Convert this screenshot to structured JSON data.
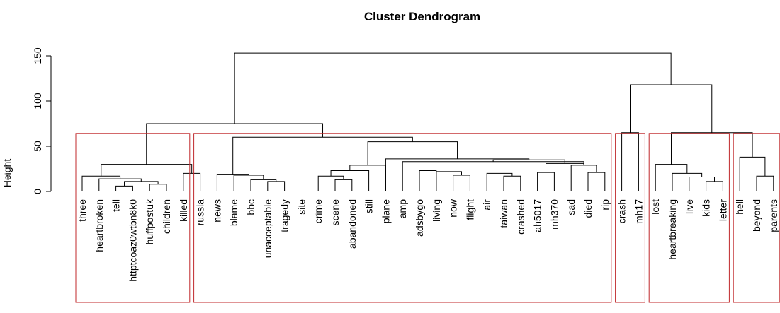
{
  "chart_data": {
    "type": "dendrogram",
    "title": "Cluster Dendrogram",
    "ylabel": "Height",
    "ylim": [
      0,
      160
    ],
    "yticks": [
      0,
      50,
      100,
      150
    ],
    "leaves": [
      "three",
      "heartbroken",
      "tell",
      "httptcoaz0wtbn8k0",
      "huffpostuk",
      "children",
      "killed",
      "russia",
      "news",
      "blame",
      "bbc",
      "unacceptable",
      "tragedy",
      "site",
      "crime",
      "scene",
      "abandoned",
      "still",
      "plane",
      "amp",
      "adsbygo",
      "living",
      "now",
      "flight",
      "air",
      "taiwan",
      "crashed",
      "ah5017",
      "mh370",
      "sad",
      "died",
      "rip",
      "crash",
      "mh17",
      "lost",
      "heartbreaking",
      "live",
      "kids",
      "letter",
      "hell",
      "beyond",
      "parents"
    ],
    "merges": [
      {
        "a": "L:2",
        "b": "L:3",
        "h": 6
      },
      {
        "a": "L:4",
        "b": "L:5",
        "h": 8
      },
      {
        "a": "N:0",
        "b": "N:1",
        "h": 11
      },
      {
        "a": "L:1",
        "b": "N:2",
        "h": 14
      },
      {
        "a": "L:0",
        "b": "N:3",
        "h": 17
      },
      {
        "a": "L:6",
        "b": "L:7",
        "h": 20
      },
      {
        "a": "N:4",
        "b": "N:5",
        "h": 30
      },
      {
        "a": "L:11",
        "b": "L:12",
        "h": 11
      },
      {
        "a": "L:10",
        "b": "N:7",
        "h": 13
      },
      {
        "a": "L:9",
        "b": "N:8",
        "h": 18
      },
      {
        "a": "L:8",
        "b": "N:9",
        "h": 19
      },
      {
        "a": "L:15",
        "b": "L:16",
        "h": 13
      },
      {
        "a": "L:14",
        "b": "N:11",
        "h": 17
      },
      {
        "a": "N:12",
        "b": "L:17",
        "h": 23
      },
      {
        "a": "N:13",
        "b": "L:18",
        "h": 29
      },
      {
        "a": "L:27",
        "b": "L:28",
        "h": 21
      },
      {
        "a": "L:25",
        "b": "L:26",
        "h": 17
      },
      {
        "a": "L:24",
        "b": "N:16",
        "h": 20
      },
      {
        "a": "L:22",
        "b": "L:23",
        "h": 18
      },
      {
        "a": "L:21",
        "b": "N:18",
        "h": 22
      },
      {
        "a": "L:20",
        "b": "L:21",
        "h": 23
      },
      {
        "a": "L:30",
        "b": "L:31",
        "h": 21
      },
      {
        "a": "L:29",
        "b": "N:21",
        "h": 29
      },
      {
        "a": "N:15",
        "b": "N:22",
        "h": 31
      },
      {
        "a": "L:19",
        "b": "N:22",
        "h": 33
      },
      {
        "a": "N:24",
        "b": "N:23",
        "h": 35
      },
      {
        "a": "L:18",
        "b": "N:25",
        "h": 36
      },
      {
        "a": "N:14",
        "b": "N:26",
        "h": 55
      },
      {
        "a": "N:10",
        "b": "N:27",
        "h": 60
      },
      {
        "a": "N:6",
        "b": "N:28",
        "h": 75
      },
      {
        "a": "L:32",
        "b": "L:33",
        "h": 65
      },
      {
        "a": "L:37",
        "b": "L:38",
        "h": 11
      },
      {
        "a": "L:36",
        "b": "N:31",
        "h": 16
      },
      {
        "a": "L:35",
        "b": "N:32",
        "h": 20
      },
      {
        "a": "L:34",
        "b": "N:33",
        "h": 30
      },
      {
        "a": "L:40",
        "b": "L:41",
        "h": 17
      },
      {
        "a": "L:39",
        "b": "N:35",
        "h": 38
      },
      {
        "a": "N:34",
        "b": "N:36",
        "h": 65
      },
      {
        "a": "N:30",
        "b": "N:37",
        "h": 118
      },
      {
        "a": "N:29",
        "b": "N:38",
        "h": 153
      }
    ],
    "clusters": [
      {
        "from": 0,
        "to": 6
      },
      {
        "from": 7,
        "to": 31
      },
      {
        "from": 32,
        "to": 33
      },
      {
        "from": 34,
        "to": 38
      },
      {
        "from": 39,
        "to": 41
      }
    ],
    "cluster_cut_height": 65,
    "colors": {
      "branch": "#000000",
      "cluster_rect": "#c0282b"
    }
  }
}
